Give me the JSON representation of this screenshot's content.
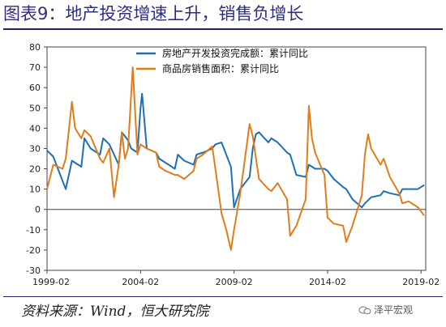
{
  "header": {
    "title": "图表9：地产投资增速上升，销售负增长"
  },
  "footer": {
    "source": "资料来源：Wind，恒大研究院",
    "watermark": "泽平宏观"
  },
  "chart_data": {
    "type": "line",
    "title": "",
    "xlabel": "",
    "ylabel": "",
    "x_ticks": [
      "1999-02",
      "2004-02",
      "2009-02",
      "2014-02",
      "2019-02"
    ],
    "xlim": [
      "1999-02",
      "2019-05"
    ],
    "ylim": [
      -30,
      80
    ],
    "y_ticks": [
      -30,
      -20,
      -10,
      0,
      10,
      20,
      30,
      40,
      50,
      60,
      70,
      80
    ],
    "grid": false,
    "legend_position": "top-right",
    "colors": {
      "investment": "#1f6fb4",
      "sales": "#e07d1a"
    },
    "series": [
      {
        "name": "房地产开发投资完成额：累计同比",
        "points": [
          [
            "1999-02",
            29
          ],
          [
            "1999-06",
            26
          ],
          [
            "1999-12",
            14
          ],
          [
            "2000-02",
            10
          ],
          [
            "2000-06",
            24
          ],
          [
            "2000-12",
            21
          ],
          [
            "2001-02",
            35
          ],
          [
            "2001-06",
            30
          ],
          [
            "2001-12",
            27
          ],
          [
            "2002-02",
            35
          ],
          [
            "2002-06",
            32
          ],
          [
            "2002-12",
            22
          ],
          [
            "2003-02",
            38
          ],
          [
            "2003-06",
            34
          ],
          [
            "2003-08",
            30
          ],
          [
            "2003-12",
            28
          ],
          [
            "2004-02",
            50
          ],
          [
            "2004-03",
            57
          ],
          [
            "2004-06",
            30
          ],
          [
            "2004-12",
            28
          ],
          [
            "2005-02",
            25
          ],
          [
            "2005-06",
            23
          ],
          [
            "2005-12",
            20
          ],
          [
            "2006-02",
            27
          ],
          [
            "2006-06",
            24
          ],
          [
            "2006-12",
            22
          ],
          [
            "2007-02",
            27
          ],
          [
            "2007-06",
            28
          ],
          [
            "2007-12",
            30
          ],
          [
            "2008-02",
            32
          ],
          [
            "2008-06",
            33
          ],
          [
            "2008-09",
            27
          ],
          [
            "2008-12",
            21
          ],
          [
            "2009-02",
            1
          ],
          [
            "2009-06",
            10
          ],
          [
            "2009-12",
            16
          ],
          [
            "2010-02",
            30
          ],
          [
            "2010-04",
            37
          ],
          [
            "2010-06",
            38
          ],
          [
            "2010-12",
            33
          ],
          [
            "2011-02",
            35
          ],
          [
            "2011-06",
            33
          ],
          [
            "2011-12",
            28
          ],
          [
            "2012-02",
            27
          ],
          [
            "2012-06",
            17
          ],
          [
            "2012-12",
            16
          ],
          [
            "2013-02",
            22
          ],
          [
            "2013-06",
            20
          ],
          [
            "2013-12",
            20
          ],
          [
            "2014-02",
            19
          ],
          [
            "2014-06",
            15
          ],
          [
            "2014-12",
            11
          ],
          [
            "2015-02",
            10
          ],
          [
            "2015-06",
            5
          ],
          [
            "2015-12",
            1
          ],
          [
            "2016-02",
            3
          ],
          [
            "2016-06",
            6
          ],
          [
            "2016-12",
            7
          ],
          [
            "2017-02",
            9
          ],
          [
            "2017-06",
            8
          ],
          [
            "2017-12",
            7
          ],
          [
            "2018-02",
            10
          ],
          [
            "2018-06",
            10
          ],
          [
            "2018-12",
            10
          ],
          [
            "2019-02",
            11
          ],
          [
            "2019-04",
            12
          ]
        ]
      },
      {
        "name": "商品房销售面积：累计同比",
        "points": [
          [
            "1999-02",
            10
          ],
          [
            "1999-06",
            22
          ],
          [
            "1999-12",
            20
          ],
          [
            "2000-02",
            25
          ],
          [
            "2000-06",
            53
          ],
          [
            "2000-08",
            40
          ],
          [
            "2000-12",
            35
          ],
          [
            "2001-02",
            39
          ],
          [
            "2001-06",
            36
          ],
          [
            "2001-12",
            25
          ],
          [
            "2002-02",
            23
          ],
          [
            "2002-06",
            30
          ],
          [
            "2002-09",
            6
          ],
          [
            "2002-12",
            22
          ],
          [
            "2003-02",
            38
          ],
          [
            "2003-04",
            25
          ],
          [
            "2003-06",
            30
          ],
          [
            "2003-09",
            70
          ],
          [
            "2003-12",
            27
          ],
          [
            "2004-02",
            32
          ],
          [
            "2004-06",
            30
          ],
          [
            "2004-12",
            28
          ],
          [
            "2005-02",
            21
          ],
          [
            "2005-06",
            19
          ],
          [
            "2005-12",
            17
          ],
          [
            "2006-02",
            17
          ],
          [
            "2006-06",
            15
          ],
          [
            "2006-12",
            19
          ],
          [
            "2007-02",
            25
          ],
          [
            "2007-06",
            27
          ],
          [
            "2007-12",
            31
          ],
          [
            "2008-02",
            20
          ],
          [
            "2008-06",
            -2
          ],
          [
            "2008-09",
            -10
          ],
          [
            "2008-12",
            -20
          ],
          [
            "2009-02",
            -10
          ],
          [
            "2009-06",
            8
          ],
          [
            "2009-12",
            42
          ],
          [
            "2010-02",
            36
          ],
          [
            "2010-06",
            15
          ],
          [
            "2010-12",
            10
          ],
          [
            "2011-02",
            9
          ],
          [
            "2011-06",
            13
          ],
          [
            "2011-12",
            5
          ],
          [
            "2012-02",
            -13
          ],
          [
            "2012-06",
            -8
          ],
          [
            "2012-12",
            5
          ],
          [
            "2013-02",
            51
          ],
          [
            "2013-04",
            35
          ],
          [
            "2013-06",
            28
          ],
          [
            "2013-12",
            17
          ],
          [
            "2014-02",
            -4
          ],
          [
            "2014-06",
            -7
          ],
          [
            "2014-12",
            -8
          ],
          [
            "2015-02",
            -16
          ],
          [
            "2015-06",
            -8
          ],
          [
            "2015-12",
            7
          ],
          [
            "2016-02",
            27
          ],
          [
            "2016-04",
            37
          ],
          [
            "2016-06",
            30
          ],
          [
            "2016-12",
            22
          ],
          [
            "2017-02",
            25
          ],
          [
            "2017-06",
            16
          ],
          [
            "2017-12",
            8
          ],
          [
            "2018-02",
            3
          ],
          [
            "2018-06",
            4
          ],
          [
            "2018-12",
            1
          ],
          [
            "2019-02",
            -1
          ],
          [
            "2019-04",
            -3
          ]
        ]
      }
    ]
  }
}
